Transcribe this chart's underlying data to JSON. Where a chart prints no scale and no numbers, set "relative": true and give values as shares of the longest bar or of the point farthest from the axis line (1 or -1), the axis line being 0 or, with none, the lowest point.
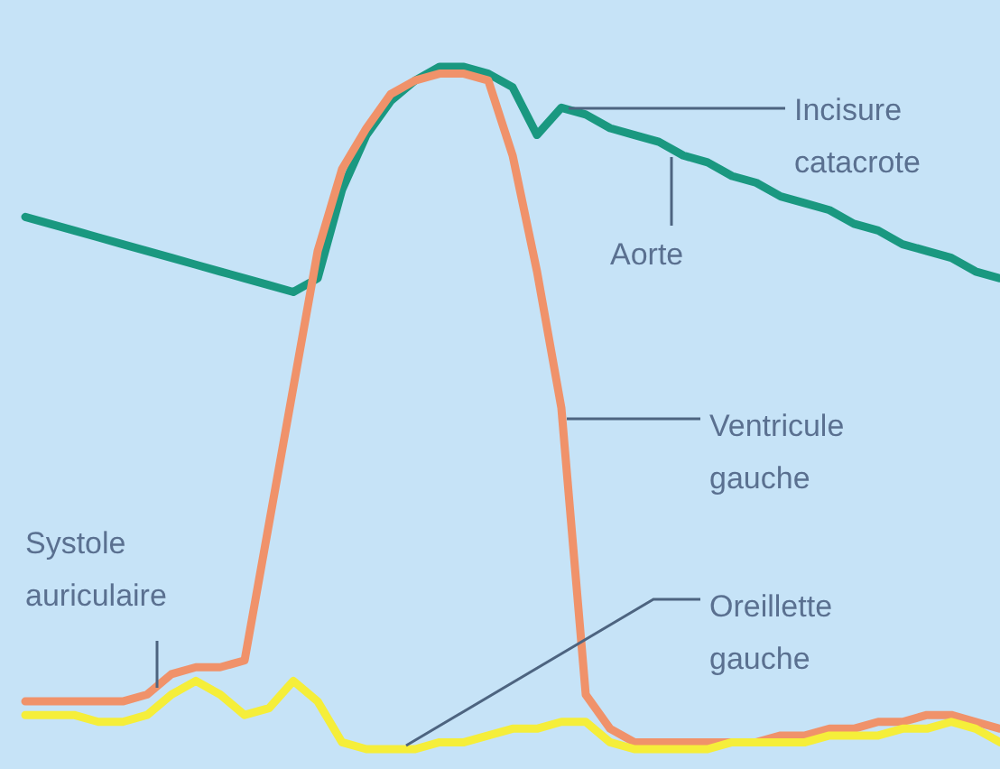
{
  "chart_data": {
    "type": "line",
    "relative": true,
    "categories": [
      null,
      null,
      null,
      null,
      null,
      null,
      null,
      null,
      null,
      null,
      null,
      null,
      null,
      null,
      null,
      null,
      null,
      null,
      null,
      null,
      null,
      null,
      null,
      null,
      null,
      null,
      null,
      null,
      null,
      null,
      null,
      null,
      null,
      null,
      null,
      null,
      null,
      null,
      null,
      null,
      null
    ],
    "series": [
      {
        "color": "#f5ee3a",
        "values": [
          0.05,
          0.05,
          0.05,
          0.04,
          0.04,
          0.05,
          0.08,
          0.1,
          0.08,
          0.05,
          0.06,
          0.1,
          0.07,
          0.01,
          0.0,
          0.0,
          0.0,
          0.01,
          0.01,
          0.02,
          0.03,
          0.03,
          0.04,
          0.04,
          0.01,
          0.0,
          0.0,
          0.0,
          0.0,
          0.01,
          0.01,
          0.01,
          0.01,
          0.02,
          0.02,
          0.02,
          0.03,
          0.03,
          0.04,
          0.03,
          0.01
        ]
      },
      {
        "color": "#f0926a",
        "values": [
          0.07,
          0.07,
          0.07,
          0.07,
          0.07,
          0.08,
          0.11,
          0.12,
          0.12,
          0.13,
          0.33,
          0.53,
          0.73,
          0.85,
          0.91,
          0.96,
          0.98,
          0.99,
          0.99,
          0.98,
          0.87,
          0.7,
          0.5,
          0.08,
          0.03,
          0.01,
          0.01,
          0.01,
          0.01,
          0.01,
          0.01,
          0.02,
          0.02,
          0.03,
          0.03,
          0.04,
          0.04,
          0.05,
          0.05,
          0.04,
          0.03
        ]
      },
      {
        "color": "#1a9880",
        "values": [
          0.78,
          0.77,
          0.76,
          0.75,
          0.74,
          0.73,
          0.72,
          0.71,
          0.7,
          0.69,
          0.68,
          0.67,
          0.69,
          0.82,
          0.9,
          0.95,
          0.98,
          1.0,
          1.0,
          0.99,
          0.97,
          0.9,
          0.94,
          0.93,
          0.91,
          0.9,
          0.89,
          0.87,
          0.86,
          0.84,
          0.83,
          0.81,
          0.8,
          0.79,
          0.77,
          0.76,
          0.74,
          0.73,
          0.72,
          0.7,
          0.69
        ]
      }
    ],
    "annotations": [
      "Incisure catacrote",
      "Aorte",
      "Ventricule gauche",
      "Oreillette gauche",
      "Systole auriculaire"
    ],
    "marker": "none",
    "line_style": "solid",
    "legend": false
  }
}
